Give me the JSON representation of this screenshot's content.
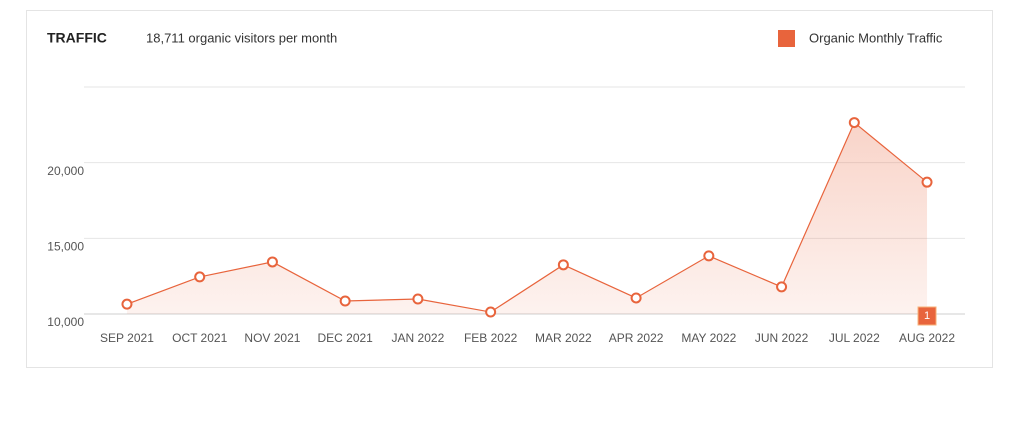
{
  "chart_data": {
    "type": "line",
    "title": "TRAFFIC",
    "subtitle": "18,711 organic visitors per month",
    "categories": [
      "SEP 2021",
      "OCT 2021",
      "NOV 2021",
      "DEC 2021",
      "JAN 2022",
      "FEB 2022",
      "MAR 2022",
      "APR 2022",
      "MAY 2022",
      "JUN 2022",
      "JUL 2022",
      "AUG 2022"
    ],
    "series": [
      {
        "name": "Organic Monthly Traffic",
        "color": "#e8643c",
        "values": [
          10650,
          12450,
          13440,
          10860,
          10990,
          10130,
          13250,
          11060,
          13840,
          11790,
          22650,
          18711
        ]
      }
    ],
    "ylim": [
      10000,
      25000
    ],
    "yticks": [
      {
        "value": 10000,
        "label": "10,000"
      },
      {
        "value": 15000,
        "label": "15,000"
      },
      {
        "value": 20000,
        "label": "20,000"
      }
    ],
    "grid": true,
    "legend": "top-right",
    "annotation": "1"
  }
}
